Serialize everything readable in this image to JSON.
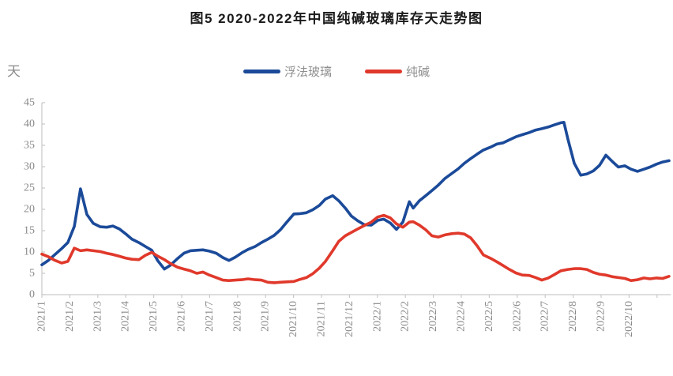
{
  "title": "图5 2020-2022年中国纯碱玻璃库存天走势图",
  "chart_data": {
    "type": "line",
    "title": "图5 2020-2022年中国纯碱玻璃库存天走势图",
    "ylabel": "天",
    "ylim": [
      0,
      45
    ],
    "ytick_step": 5,
    "grid": false,
    "legend_position": "top-center",
    "axis_color": "#c9c9c9",
    "x_tick_labels": [
      "2021/1",
      "2021/2",
      "2021/3",
      "2021/4",
      "2021/5",
      "2021/6",
      "2021/7",
      "2021/8",
      "2021/9",
      "2021/10",
      "2021/11",
      "2021/12",
      "2022/1",
      "2022/2",
      "2022/3",
      "2022/4",
      "2022/5",
      "2022/6",
      "2022/7",
      "2022/8",
      "2022/9",
      "2022/10"
    ],
    "x_unit": "month_index_from_2021_1",
    "series": [
      {
        "name": "浮法玻璃",
        "color": "#1b4a99",
        "points": [
          [
            0,
            7.0
          ],
          [
            0.23,
            8.0
          ],
          [
            0.45,
            9.3
          ],
          [
            0.71,
            10.8
          ],
          [
            0.93,
            12.2
          ],
          [
            1.16,
            16.0
          ],
          [
            1.38,
            24.8
          ],
          [
            1.61,
            18.8
          ],
          [
            1.84,
            16.7
          ],
          [
            2.09,
            15.9
          ],
          [
            2.32,
            15.8
          ],
          [
            2.54,
            16.1
          ],
          [
            2.77,
            15.4
          ],
          [
            2.99,
            14.3
          ],
          [
            3.22,
            13.0
          ],
          [
            3.47,
            12.2
          ],
          [
            3.7,
            11.3
          ],
          [
            3.93,
            10.4
          ],
          [
            4.15,
            7.9
          ],
          [
            4.38,
            6.0
          ],
          [
            4.6,
            6.9
          ],
          [
            4.86,
            8.5
          ],
          [
            5.08,
            9.7
          ],
          [
            5.31,
            10.3
          ],
          [
            5.54,
            10.4
          ],
          [
            5.76,
            10.5
          ],
          [
            5.99,
            10.2
          ],
          [
            6.24,
            9.7
          ],
          [
            6.47,
            8.7
          ],
          [
            6.69,
            8.0
          ],
          [
            6.92,
            8.8
          ],
          [
            7.15,
            9.8
          ],
          [
            7.37,
            10.6
          ],
          [
            7.63,
            11.3
          ],
          [
            7.85,
            12.2
          ],
          [
            8.08,
            13.0
          ],
          [
            8.31,
            13.9
          ],
          [
            8.53,
            15.2
          ],
          [
            8.76,
            17.0
          ],
          [
            9.01,
            18.9
          ],
          [
            9.24,
            19.0
          ],
          [
            9.46,
            19.2
          ],
          [
            9.69,
            19.9
          ],
          [
            9.92,
            20.9
          ],
          [
            10.14,
            22.4
          ],
          [
            10.4,
            23.2
          ],
          [
            10.62,
            22.0
          ],
          [
            10.85,
            20.3
          ],
          [
            11.07,
            18.4
          ],
          [
            11.3,
            17.3
          ],
          [
            11.53,
            16.4
          ],
          [
            11.78,
            16.3
          ],
          [
            12.01,
            17.4
          ],
          [
            12.23,
            17.7
          ],
          [
            12.46,
            16.8
          ],
          [
            12.68,
            15.3
          ],
          [
            12.91,
            17.0
          ],
          [
            13.14,
            21.8
          ],
          [
            13.28,
            20.3
          ],
          [
            13.5,
            22.0
          ],
          [
            13.73,
            23.2
          ],
          [
            13.95,
            24.4
          ],
          [
            14.18,
            25.7
          ],
          [
            14.41,
            27.2
          ],
          [
            14.66,
            28.4
          ],
          [
            14.89,
            29.5
          ],
          [
            15.11,
            30.8
          ],
          [
            15.34,
            31.9
          ],
          [
            15.56,
            32.9
          ],
          [
            15.79,
            33.9
          ],
          [
            16.05,
            34.6
          ],
          [
            16.27,
            35.3
          ],
          [
            16.5,
            35.6
          ],
          [
            16.72,
            36.3
          ],
          [
            16.95,
            37.0
          ],
          [
            17.18,
            37.5
          ],
          [
            17.43,
            38.0
          ],
          [
            17.66,
            38.6
          ],
          [
            17.88,
            38.9
          ],
          [
            18.11,
            39.3
          ],
          [
            18.33,
            39.8
          ],
          [
            18.56,
            40.3
          ],
          [
            18.67,
            40.4
          ],
          [
            18.81,
            36.5
          ],
          [
            19.04,
            30.8
          ],
          [
            19.27,
            28.0
          ],
          [
            19.49,
            28.3
          ],
          [
            19.72,
            29.0
          ],
          [
            19.94,
            30.3
          ],
          [
            20.17,
            32.7
          ],
          [
            20.4,
            31.2
          ],
          [
            20.62,
            29.9
          ],
          [
            20.85,
            30.2
          ],
          [
            21.07,
            29.4
          ],
          [
            21.3,
            28.9
          ],
          [
            21.53,
            29.4
          ],
          [
            21.75,
            29.9
          ],
          [
            21.98,
            30.6
          ],
          [
            22.2,
            31.1
          ],
          [
            22.43,
            31.4
          ]
        ]
      },
      {
        "name": "纯碱",
        "color": "#e0392b",
        "points": [
          [
            0,
            9.5
          ],
          [
            0.23,
            8.9
          ],
          [
            0.45,
            8.1
          ],
          [
            0.71,
            7.4
          ],
          [
            0.93,
            7.8
          ],
          [
            1.16,
            10.9
          ],
          [
            1.38,
            10.3
          ],
          [
            1.61,
            10.5
          ],
          [
            1.84,
            10.3
          ],
          [
            2.09,
            10.1
          ],
          [
            2.32,
            9.7
          ],
          [
            2.54,
            9.4
          ],
          [
            2.77,
            9.0
          ],
          [
            2.99,
            8.6
          ],
          [
            3.22,
            8.3
          ],
          [
            3.47,
            8.2
          ],
          [
            3.7,
            9.2
          ],
          [
            3.93,
            9.9
          ],
          [
            4.15,
            9.0
          ],
          [
            4.38,
            8.2
          ],
          [
            4.6,
            7.3
          ],
          [
            4.86,
            6.4
          ],
          [
            5.08,
            6.0
          ],
          [
            5.31,
            5.6
          ],
          [
            5.54,
            5.0
          ],
          [
            5.76,
            5.3
          ],
          [
            5.99,
            4.6
          ],
          [
            6.24,
            4.0
          ],
          [
            6.47,
            3.4
          ],
          [
            6.69,
            3.3
          ],
          [
            6.92,
            3.4
          ],
          [
            7.15,
            3.5
          ],
          [
            7.37,
            3.7
          ],
          [
            7.63,
            3.5
          ],
          [
            7.85,
            3.4
          ],
          [
            8.08,
            2.9
          ],
          [
            8.31,
            2.8
          ],
          [
            8.53,
            2.9
          ],
          [
            8.76,
            3.0
          ],
          [
            9.01,
            3.1
          ],
          [
            9.24,
            3.6
          ],
          [
            9.46,
            4.0
          ],
          [
            9.69,
            4.9
          ],
          [
            9.92,
            6.2
          ],
          [
            10.14,
            7.8
          ],
          [
            10.4,
            10.3
          ],
          [
            10.62,
            12.5
          ],
          [
            10.85,
            13.8
          ],
          [
            11.07,
            14.6
          ],
          [
            11.3,
            15.4
          ],
          [
            11.53,
            16.2
          ],
          [
            11.78,
            17.0
          ],
          [
            12.01,
            18.2
          ],
          [
            12.23,
            18.6
          ],
          [
            12.46,
            18.0
          ],
          [
            12.68,
            16.6
          ],
          [
            12.91,
            15.8
          ],
          [
            13.14,
            17.0
          ],
          [
            13.28,
            17.1
          ],
          [
            13.5,
            16.3
          ],
          [
            13.73,
            15.2
          ],
          [
            13.95,
            13.8
          ],
          [
            14.18,
            13.5
          ],
          [
            14.41,
            14.0
          ],
          [
            14.66,
            14.3
          ],
          [
            14.89,
            14.4
          ],
          [
            15.11,
            14.2
          ],
          [
            15.34,
            13.3
          ],
          [
            15.56,
            11.5
          ],
          [
            15.79,
            9.3
          ],
          [
            16.05,
            8.5
          ],
          [
            16.27,
            7.7
          ],
          [
            16.5,
            6.8
          ],
          [
            16.72,
            5.9
          ],
          [
            16.95,
            5.1
          ],
          [
            17.18,
            4.6
          ],
          [
            17.43,
            4.5
          ],
          [
            17.66,
            4.0
          ],
          [
            17.88,
            3.4
          ],
          [
            18.11,
            3.9
          ],
          [
            18.33,
            4.7
          ],
          [
            18.56,
            5.6
          ],
          [
            18.81,
            5.9
          ],
          [
            19.04,
            6.1
          ],
          [
            19.27,
            6.1
          ],
          [
            19.49,
            5.9
          ],
          [
            19.72,
            5.2
          ],
          [
            19.94,
            4.8
          ],
          [
            20.17,
            4.6
          ],
          [
            20.4,
            4.2
          ],
          [
            20.62,
            4.0
          ],
          [
            20.85,
            3.8
          ],
          [
            21.07,
            3.3
          ],
          [
            21.3,
            3.5
          ],
          [
            21.53,
            3.9
          ],
          [
            21.75,
            3.7
          ],
          [
            21.98,
            3.9
          ],
          [
            22.2,
            3.8
          ],
          [
            22.43,
            4.3
          ]
        ]
      }
    ]
  }
}
